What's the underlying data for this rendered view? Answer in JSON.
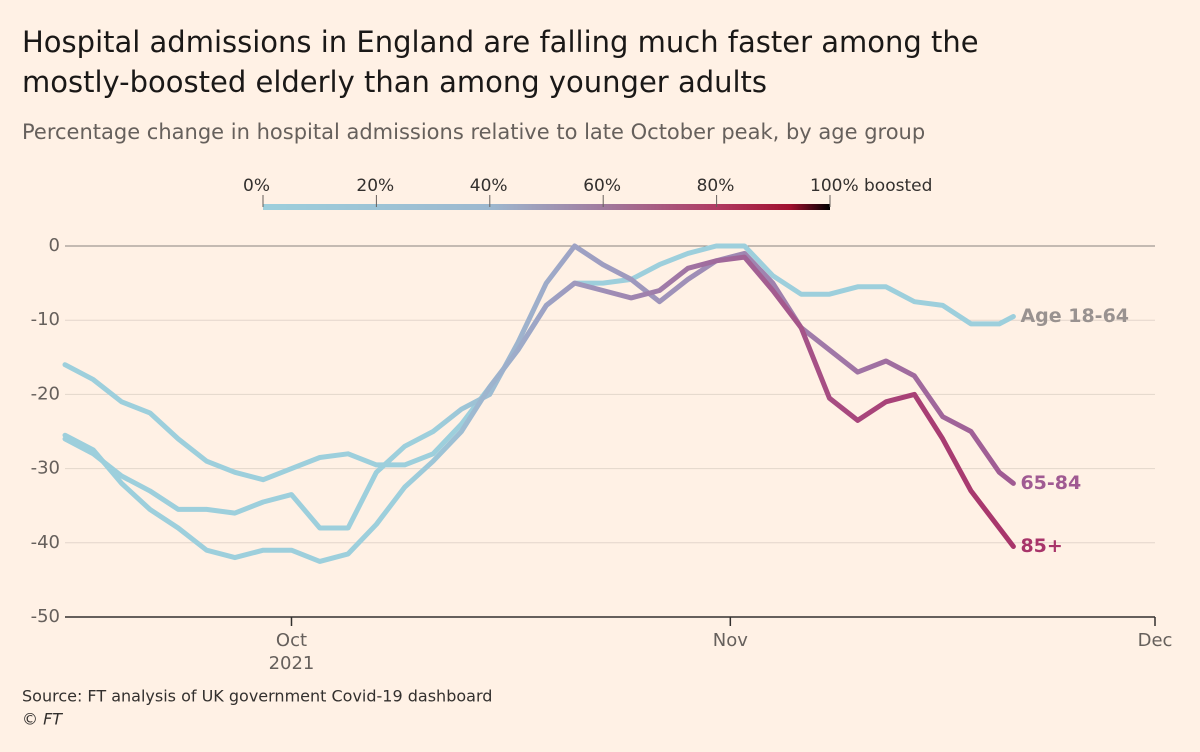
{
  "chart_data": {
    "type": "line",
    "title": "Hospital admissions in England are falling much faster among the mostly-boosted elderly than among younger adults",
    "subtitle": "Percentage change in hospital admissions relative to late October peak, by age group",
    "source": "Source: FT analysis of UK government Covid-19 dashboard",
    "credit": "© FT",
    "colorbar": {
      "ticks": [
        {
          "value": 0,
          "label": "0%"
        },
        {
          "value": 20,
          "label": "20%"
        },
        {
          "value": 40,
          "label": "40%"
        },
        {
          "value": 60,
          "label": "60%"
        },
        {
          "value": 80,
          "label": "80%"
        },
        {
          "value": 100,
          "label": "100% boosted"
        }
      ],
      "lim": [
        0,
        100
      ],
      "colors": [
        {
          "at": 0,
          "color": "#9dcfdc"
        },
        {
          "at": 40,
          "color": "#9db8cf"
        },
        {
          "at": 60,
          "color": "#a07a9e"
        },
        {
          "at": 80,
          "color": "#b03a62"
        },
        {
          "at": 93,
          "color": "#a0102e"
        },
        {
          "at": 100,
          "color": "#000000"
        }
      ]
    },
    "x": [
      0,
      2,
      4,
      6,
      8,
      10,
      12,
      14,
      16,
      18,
      20,
      22,
      24,
      26,
      28,
      30,
      32,
      34,
      36,
      38,
      40,
      42,
      44,
      46,
      48,
      50,
      52,
      54,
      56,
      58,
      60,
      62,
      64,
      66,
      67
    ],
    "xlim": [
      0,
      77
    ],
    "xticks": [
      {
        "value": 16,
        "label": "Oct"
      },
      {
        "value": 47,
        "label": "Nov"
      },
      {
        "value": 77,
        "label": "Dec"
      }
    ],
    "xtick_year": {
      "value": 16,
      "label": "2021"
    },
    "ylim": [
      -50,
      0
    ],
    "yticks": [
      0,
      -10,
      -20,
      -30,
      -40,
      -50
    ],
    "grid": true,
    "series": [
      {
        "name": "Age 18-64",
        "label_color": "#999290",
        "color_stops": [
          {
            "x": 0,
            "color": "#9dcfdc"
          },
          {
            "x": 67,
            "color": "#9dcfdc"
          }
        ],
        "values": [
          -16,
          -18,
          -21,
          -22.5,
          -26,
          -29,
          -30.5,
          -31.5,
          -30,
          -28.5,
          -28,
          -29.5,
          -29.5,
          -28,
          -24,
          -19,
          -14,
          -8,
          -5,
          -5,
          -4.5,
          -2.5,
          -1,
          0,
          0,
          -4,
          -6.5,
          -6.5,
          -5.5,
          -5.5,
          -7.5,
          -8,
          -10.5,
          -10.5,
          -9.5
        ]
      },
      {
        "name": "65-84",
        "label_color": "#a05a92",
        "color_stops": [
          {
            "x": 0,
            "color": "#9dcfdc"
          },
          {
            "x": 26,
            "color": "#9dcfdc"
          },
          {
            "x": 36,
            "color": "#9ea2c4"
          },
          {
            "x": 52,
            "color": "#a07dab"
          },
          {
            "x": 67,
            "color": "#a05a92"
          }
        ],
        "values": [
          -26,
          -28,
          -31,
          -33,
          -35.5,
          -35.5,
          -36,
          -34.5,
          -33.5,
          -38,
          -38,
          -30.5,
          -27,
          -25,
          -22,
          -20,
          -13,
          -5,
          0,
          -2.5,
          -4.5,
          -7.5,
          -4.5,
          -2,
          -1,
          -5,
          -11,
          -14,
          -17,
          -15.5,
          -17.5,
          -23,
          -25,
          -30.5,
          -32
        ]
      },
      {
        "name": "85+",
        "label_color": "#a8356a",
        "color_stops": [
          {
            "x": 0,
            "color": "#9dcfdc"
          },
          {
            "x": 24,
            "color": "#9dcfdc"
          },
          {
            "x": 34,
            "color": "#9ea2c4"
          },
          {
            "x": 46,
            "color": "#a06a9c"
          },
          {
            "x": 56,
            "color": "#a8467c"
          },
          {
            "x": 67,
            "color": "#a8356a"
          }
        ],
        "values": [
          -25.5,
          -27.5,
          -32,
          -35.5,
          -38,
          -41,
          -42,
          -41,
          -41,
          -42.5,
          -41.5,
          -37.5,
          -32.5,
          -29,
          -25,
          -19,
          -14,
          -8,
          -5,
          -6,
          -7,
          -6,
          -3,
          -2,
          -1.5,
          -6,
          -11,
          -20.5,
          -23.5,
          -21,
          -20,
          -26,
          -33,
          -38,
          -40.5
        ]
      }
    ]
  }
}
